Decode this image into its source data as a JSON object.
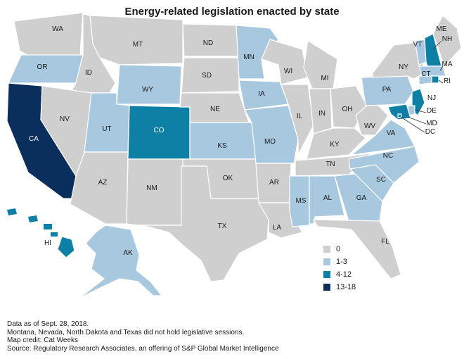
{
  "title": "Energy-related legislation enacted by state",
  "colors": {
    "c0": "#cfcfcf",
    "c1": "#a8c8e0",
    "c2": "#0e7fa5",
    "c3": "#0a2f5c",
    "border": "#ffffff"
  },
  "legend": [
    {
      "label": "0",
      "color_key": "c0"
    },
    {
      "label": "1-3",
      "color_key": "c1"
    },
    {
      "label": "4-12",
      "color_key": "c2"
    },
    {
      "label": "13-18",
      "color_key": "c3"
    }
  ],
  "states": [
    {
      "abbr": "WA",
      "category": "0"
    },
    {
      "abbr": "OR",
      "category": "1-3"
    },
    {
      "abbr": "CA",
      "category": "13-18"
    },
    {
      "abbr": "ID",
      "category": "0"
    },
    {
      "abbr": "NV",
      "category": "0"
    },
    {
      "abbr": "MT",
      "category": "0"
    },
    {
      "abbr": "WY",
      "category": "1-3"
    },
    {
      "abbr": "UT",
      "category": "1-3"
    },
    {
      "abbr": "AZ",
      "category": "0"
    },
    {
      "abbr": "CO",
      "category": "4-12"
    },
    {
      "abbr": "NM",
      "category": "0"
    },
    {
      "abbr": "ND",
      "category": "0"
    },
    {
      "abbr": "SD",
      "category": "0"
    },
    {
      "abbr": "NE",
      "category": "0"
    },
    {
      "abbr": "KS",
      "category": "1-3"
    },
    {
      "abbr": "OK",
      "category": "0"
    },
    {
      "abbr": "TX",
      "category": "0"
    },
    {
      "abbr": "MN",
      "category": "1-3"
    },
    {
      "abbr": "IA",
      "category": "1-3"
    },
    {
      "abbr": "MO",
      "category": "1-3"
    },
    {
      "abbr": "AR",
      "category": "0"
    },
    {
      "abbr": "LA",
      "category": "0"
    },
    {
      "abbr": "WI",
      "category": "0"
    },
    {
      "abbr": "IL",
      "category": "0"
    },
    {
      "abbr": "MI",
      "category": "0"
    },
    {
      "abbr": "IN",
      "category": "0"
    },
    {
      "abbr": "OH",
      "category": "0"
    },
    {
      "abbr": "KY",
      "category": "0"
    },
    {
      "abbr": "TN",
      "category": "0"
    },
    {
      "abbr": "MS",
      "category": "1-3"
    },
    {
      "abbr": "AL",
      "category": "1-3"
    },
    {
      "abbr": "GA",
      "category": "1-3"
    },
    {
      "abbr": "FL",
      "category": "0"
    },
    {
      "abbr": "SC",
      "category": "1-3"
    },
    {
      "abbr": "NC",
      "category": "1-3"
    },
    {
      "abbr": "VA",
      "category": "1-3"
    },
    {
      "abbr": "WV",
      "category": "0"
    },
    {
      "abbr": "PA",
      "category": "1-3"
    },
    {
      "abbr": "NY",
      "category": "0"
    },
    {
      "abbr": "VT",
      "category": "1-3"
    },
    {
      "abbr": "NH",
      "category": "4-12"
    },
    {
      "abbr": "ME",
      "category": "0"
    },
    {
      "abbr": "MA",
      "category": "1-3"
    },
    {
      "abbr": "RI",
      "category": "4-12"
    },
    {
      "abbr": "CT",
      "category": "1-3"
    },
    {
      "abbr": "NJ",
      "category": "4-12"
    },
    {
      "abbr": "DE",
      "category": "1-3"
    },
    {
      "abbr": "MD",
      "category": "4-12"
    },
    {
      "abbr": "DC",
      "category": "4-12"
    },
    {
      "abbr": "AK",
      "category": "1-3"
    },
    {
      "abbr": "HI",
      "category": "4-12"
    }
  ],
  "notes": [
    "Data as of Sept. 28, 2018.",
    "Montana, Nevada, North Dakota and Texas did not hold legislative sessions.",
    "Map credit: Cat Weeks",
    "Source: Regulatory Research Associates, an offering of S&P Global Market Intelligence"
  ]
}
